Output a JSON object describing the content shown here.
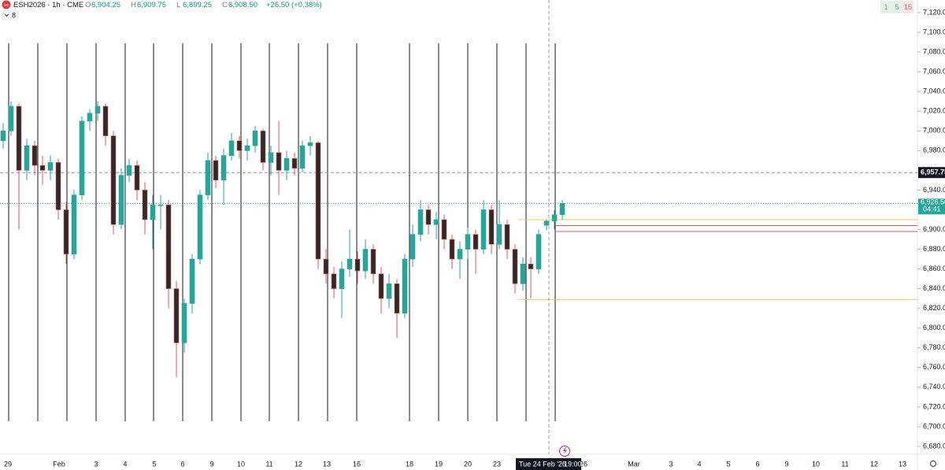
{
  "chart_data": {
    "type": "candlestick",
    "icon_text": "500",
    "symbol": "ESH2026 · 1h · CME",
    "ohlc": [
      {
        "label": "O",
        "value": "6,904.25"
      },
      {
        "label": "H",
        "value": "6,909.75"
      },
      {
        "label": "L",
        "value": "6,899.25"
      },
      {
        "label": "C",
        "value": "6,908.50"
      }
    ],
    "change": "+26.50 (+0.38%)",
    "indicator_count": "8",
    "intervals": [
      "1",
      "5",
      "15"
    ],
    "ylim": [
      6673.6,
      7132.8
    ],
    "yticks": [
      {
        "value": 7120,
        "label": "7,120.00"
      },
      {
        "value": 7100,
        "label": "7,100.00"
      },
      {
        "value": 7080,
        "label": "7,080.00"
      },
      {
        "value": 7060,
        "label": "7,060.00"
      },
      {
        "value": 7040,
        "label": "7,040.00"
      },
      {
        "value": 7020,
        "label": "7,020.00"
      },
      {
        "value": 7000,
        "label": "7,000.00"
      },
      {
        "value": 6980,
        "label": "6,980.00"
      },
      {
        "value": 6940,
        "label": "6,940.00"
      },
      {
        "value": 6900,
        "label": "6,900.00"
      },
      {
        "value": 6880,
        "label": "6,880.00"
      },
      {
        "value": 6860,
        "label": "6,860.00"
      },
      {
        "value": 6840,
        "label": "6,840.00"
      },
      {
        "value": 6820,
        "label": "6,820.00"
      },
      {
        "value": 6800,
        "label": "6,800.00"
      },
      {
        "value": 6780,
        "label": "6,780.00"
      },
      {
        "value": 6760,
        "label": "6,760.00"
      },
      {
        "value": 6740,
        "label": "6,740.00"
      },
      {
        "value": 6720,
        "label": "6,720.00"
      },
      {
        "value": 6700,
        "label": "6,700.00"
      },
      {
        "value": 6680,
        "label": "6,680.00"
      }
    ],
    "x_labels": [
      "29",
      "Feb",
      "3",
      "4",
      "5",
      "6",
      "9",
      "10",
      "11",
      "12",
      "13",
      "16",
      "18",
      "19",
      "20",
      "23",
      "26",
      "Mar",
      "3",
      "4",
      "5",
      "6",
      "9",
      "10",
      "11",
      "12",
      "13"
    ],
    "crosshair_date": "Tue 24 Feb '26",
    "crosshair_time": "19:00",
    "marker_line": {
      "value": 6957.75,
      "label": "6,957.75"
    },
    "last_price": {
      "value": 6926.5,
      "label": "6,926.50",
      "countdown": "04:41"
    },
    "levels": [
      {
        "value": 6910,
        "color": "#f7c35c"
      },
      {
        "value": 6904,
        "color": "#f0505a"
      },
      {
        "value": 6898,
        "color": "#f0505a"
      },
      {
        "value": 6829,
        "color": "#f7c35c"
      }
    ],
    "up_color": "#26a69a",
    "down_color": "#ef5350",
    "down_body": "#2b2b2b",
    "candles": [
      [
        6990,
        7008,
        6982,
        7000
      ],
      [
        7000,
        7030,
        6995,
        7025
      ],
      [
        7025,
        7028,
        6900,
        6960
      ],
      [
        6960,
        6992,
        6950,
        6985
      ],
      [
        6985,
        6990,
        6955,
        6965
      ],
      [
        6965,
        6975,
        6945,
        6960
      ],
      [
        6960,
        6975,
        6950,
        6968
      ],
      [
        6968,
        6972,
        6910,
        6920
      ],
      [
        6920,
        6928,
        6865,
        6875
      ],
      [
        6875,
        6940,
        6870,
        6935
      ],
      [
        6935,
        7015,
        6930,
        7010
      ],
      [
        7010,
        7022,
        7000,
        7018
      ],
      [
        7018,
        7030,
        7010,
        7025
      ],
      [
        7025,
        7028,
        6985,
        6995
      ],
      [
        6995,
        7000,
        6895,
        6905
      ],
      [
        6905,
        6962,
        6900,
        6955
      ],
      [
        6955,
        6972,
        6948,
        6965
      ],
      [
        6965,
        6970,
        6930,
        6940
      ],
      [
        6940,
        6948,
        6895,
        6910
      ],
      [
        6910,
        6935,
        6880,
        6925
      ],
      [
        6925,
        6935,
        6900,
        6925
      ],
      [
        6925,
        6930,
        6820,
        6840
      ],
      [
        6840,
        6848,
        6750,
        6785
      ],
      [
        6785,
        6830,
        6775,
        6825
      ],
      [
        6825,
        6875,
        6815,
        6870
      ],
      [
        6870,
        6940,
        6865,
        6935
      ],
      [
        6935,
        6978,
        6930,
        6970
      ],
      [
        6970,
        6975,
        6942,
        6950
      ],
      [
        6950,
        6982,
        6925,
        6975
      ],
      [
        6975,
        6998,
        6970,
        6990
      ],
      [
        6990,
        6995,
        6972,
        6980
      ],
      [
        6980,
        6992,
        6970,
        6985
      ],
      [
        6985,
        7005,
        6978,
        7000
      ],
      [
        7000,
        7002,
        6960,
        6968
      ],
      [
        6968,
        6985,
        6955,
        6978
      ],
      [
        6978,
        7010,
        6935,
        6960
      ],
      [
        6960,
        6980,
        6950,
        6972
      ],
      [
        6972,
        6978,
        6955,
        6962
      ],
      [
        6962,
        6990,
        6958,
        6985
      ],
      [
        6985,
        6995,
        6975,
        6988
      ],
      [
        6988,
        6990,
        6860,
        6870
      ],
      [
        6870,
        6880,
        6845,
        6855
      ],
      [
        6855,
        6862,
        6830,
        6840
      ],
      [
        6840,
        6868,
        6810,
        6860
      ],
      [
        6860,
        6900,
        6852,
        6870
      ],
      [
        6870,
        6878,
        6845,
        6858
      ],
      [
        6858,
        6890,
        6850,
        6880
      ],
      [
        6880,
        6885,
        6845,
        6855
      ],
      [
        6855,
        6862,
        6815,
        6830
      ],
      [
        6830,
        6855,
        6820,
        6845
      ],
      [
        6845,
        6850,
        6790,
        6815
      ],
      [
        6815,
        6875,
        6810,
        6870
      ],
      [
        6870,
        6905,
        6862,
        6895
      ],
      [
        6895,
        6930,
        6888,
        6920
      ],
      [
        6920,
        6925,
        6895,
        6905
      ],
      [
        6905,
        6918,
        6890,
        6910
      ],
      [
        6910,
        6915,
        6880,
        6890
      ],
      [
        6890,
        6895,
        6860,
        6870
      ],
      [
        6870,
        6888,
        6850,
        6880
      ],
      [
        6880,
        6902,
        6870,
        6895
      ],
      [
        6895,
        6900,
        6855,
        6880
      ],
      [
        6880,
        6930,
        6875,
        6920
      ],
      [
        6920,
        6925,
        6875,
        6885
      ],
      [
        6885,
        6930,
        6880,
        6905
      ],
      [
        6905,
        6910,
        6870,
        6880
      ],
      [
        6880,
        6885,
        6835,
        6845
      ],
      [
        6845,
        6872,
        6838,
        6865
      ],
      [
        6865,
        6872,
        6830,
        6860
      ],
      [
        6860,
        6900,
        6855,
        6895
      ],
      [
        6904.25,
        6909.75,
        6899.25,
        6908.5
      ],
      [
        6908.5,
        6920,
        6900,
        6915
      ],
      [
        6915,
        6930,
        6910,
        6926.5
      ]
    ]
  }
}
